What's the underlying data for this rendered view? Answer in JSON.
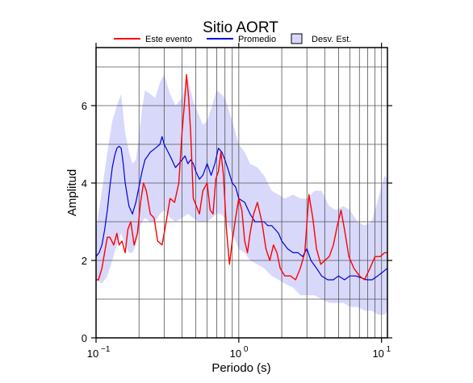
{
  "chart_data": {
    "type": "line",
    "title": "Sitio AORT",
    "xlabel": "Periodo (s)",
    "ylabel": "Amplitud",
    "x_scale": "log",
    "xlim": [
      0.1,
      11
    ],
    "ylim": [
      0,
      7.5
    ],
    "grid": true,
    "legend_position": "top",
    "x_tick_labels": [
      {
        "value": 0.1,
        "base": "10",
        "exp": "−1"
      },
      {
        "value": 1,
        "base": "10",
        "exp": "0"
      },
      {
        "value": 10,
        "base": "10",
        "exp": "1"
      }
    ],
    "y_ticks": [
      0,
      2,
      4,
      6
    ],
    "colors": {
      "este_evento": "#ff0000",
      "promedio": "#0000dd",
      "desv_est": "#d8d8fb"
    },
    "legend": [
      {
        "key": "este_evento",
        "label": "Este evento",
        "kind": "line"
      },
      {
        "key": "promedio",
        "label": "Promedio",
        "kind": "line"
      },
      {
        "key": "desv_est",
        "label": "Desv. Est.",
        "kind": "box"
      }
    ],
    "series": [
      {
        "name": "Este evento",
        "key": "este_evento",
        "x": [
          0.1,
          0.104,
          0.11,
          0.116,
          0.12,
          0.125,
          0.133,
          0.14,
          0.145,
          0.152,
          0.16,
          0.167,
          0.175,
          0.185,
          0.195,
          0.205,
          0.215,
          0.225,
          0.24,
          0.255,
          0.27,
          0.29,
          0.31,
          0.33,
          0.355,
          0.38,
          0.4,
          0.415,
          0.43,
          0.445,
          0.46,
          0.48,
          0.505,
          0.53,
          0.56,
          0.6,
          0.63,
          0.66,
          0.69,
          0.72,
          0.75,
          0.78,
          0.82,
          0.86,
          0.9,
          0.95,
          1.0,
          1.05,
          1.1,
          1.15,
          1.2,
          1.27,
          1.35,
          1.45,
          1.55,
          1.65,
          1.75,
          1.85,
          1.95,
          2.1,
          2.3,
          2.5,
          2.7,
          2.9,
          3.1,
          3.3,
          3.5,
          3.75,
          4.0,
          4.3,
          4.6,
          4.9,
          5.2,
          5.5,
          5.9,
          6.4,
          7.0,
          7.6,
          8.3,
          9.0,
          9.8,
          10.5,
          11.0
        ],
        "y": [
          1.5,
          1.5,
          1.8,
          2.3,
          2.6,
          2.6,
          2.4,
          2.7,
          2.4,
          2.5,
          2.2,
          2.8,
          3.0,
          2.4,
          2.7,
          3.5,
          4.0,
          3.8,
          3.2,
          3.1,
          2.5,
          2.4,
          3.0,
          3.6,
          3.5,
          4.0,
          5.3,
          6.0,
          6.8,
          6.2,
          5.3,
          3.6,
          3.4,
          3.2,
          3.8,
          4.0,
          3.3,
          3.2,
          4.1,
          4.3,
          4.8,
          4.2,
          2.8,
          1.9,
          2.5,
          3.1,
          3.6,
          3.3,
          2.5,
          2.2,
          2.7,
          3.2,
          3.5,
          3.0,
          2.3,
          2.0,
          2.4,
          2.2,
          1.8,
          1.6,
          1.6,
          1.5,
          1.8,
          2.2,
          3.7,
          3.1,
          2.3,
          1.9,
          2.0,
          2.1,
          2.4,
          2.9,
          3.3,
          2.8,
          2.1,
          1.8,
          1.6,
          1.5,
          1.8,
          2.1,
          2.1,
          2.2,
          2.2
        ]
      },
      {
        "name": "Promedio",
        "key": "promedio",
        "x": [
          0.1,
          0.105,
          0.11,
          0.115,
          0.12,
          0.125,
          0.13,
          0.135,
          0.14,
          0.145,
          0.15,
          0.155,
          0.16,
          0.17,
          0.18,
          0.19,
          0.2,
          0.21,
          0.22,
          0.23,
          0.24,
          0.25,
          0.26,
          0.27,
          0.28,
          0.29,
          0.3,
          0.32,
          0.34,
          0.36,
          0.38,
          0.4,
          0.42,
          0.44,
          0.46,
          0.48,
          0.5,
          0.53,
          0.56,
          0.6,
          0.64,
          0.68,
          0.72,
          0.76,
          0.8,
          0.85,
          0.9,
          0.95,
          1.0,
          1.1,
          1.2,
          1.3,
          1.4,
          1.5,
          1.6,
          1.7,
          1.8,
          1.9,
          2.0,
          2.2,
          2.4,
          2.6,
          2.8,
          3.0,
          3.2,
          3.5,
          3.8,
          4.2,
          4.6,
          5.0,
          5.5,
          6.0,
          6.6,
          7.2,
          7.9,
          8.6,
          9.4,
          10.2,
          11.0
        ],
        "y": [
          2.1,
          2.2,
          2.4,
          2.8,
          3.3,
          3.9,
          4.4,
          4.7,
          4.9,
          4.95,
          4.9,
          4.5,
          4.0,
          3.4,
          3.2,
          3.5,
          3.9,
          4.3,
          4.6,
          4.7,
          4.8,
          4.85,
          4.9,
          4.95,
          5.0,
          5.2,
          5.0,
          4.8,
          4.6,
          4.4,
          4.5,
          4.6,
          4.7,
          4.5,
          4.6,
          4.5,
          4.3,
          4.1,
          4.2,
          4.5,
          4.2,
          4.5,
          4.9,
          4.8,
          4.6,
          4.3,
          4.0,
          3.9,
          3.6,
          3.5,
          3.2,
          3.0,
          3.0,
          3.0,
          2.9,
          2.9,
          2.8,
          2.7,
          2.5,
          2.3,
          2.2,
          2.2,
          2.1,
          2.3,
          2.0,
          1.8,
          1.6,
          1.5,
          1.5,
          1.6,
          1.5,
          1.6,
          1.6,
          1.55,
          1.5,
          1.5,
          1.6,
          1.7,
          1.8
        ]
      },
      {
        "name": "Desv. Est.",
        "key": "desv_est",
        "x": [
          0.1,
          0.11,
          0.12,
          0.13,
          0.14,
          0.15,
          0.16,
          0.17,
          0.18,
          0.19,
          0.2,
          0.21,
          0.22,
          0.24,
          0.26,
          0.28,
          0.3,
          0.33,
          0.36,
          0.4,
          0.44,
          0.48,
          0.52,
          0.56,
          0.6,
          0.65,
          0.7,
          0.75,
          0.8,
          0.9,
          1.0,
          1.1,
          1.2,
          1.35,
          1.5,
          1.7,
          1.9,
          2.1,
          2.4,
          2.7,
          3.0,
          3.4,
          3.8,
          4.3,
          4.8,
          5.4,
          6.0,
          6.8,
          7.6,
          8.5,
          9.5,
          10.5,
          11.0
        ],
        "upper": [
          2.8,
          3.8,
          4.8,
          5.6,
          6.0,
          6.3,
          5.3,
          4.8,
          4.5,
          4.6,
          5.2,
          5.9,
          6.4,
          6.3,
          6.2,
          6.6,
          6.8,
          6.3,
          6.0,
          6.2,
          6.7,
          6.1,
          5.8,
          5.5,
          5.6,
          6.0,
          6.4,
          6.3,
          6.2,
          5.6,
          5.0,
          4.8,
          4.5,
          4.4,
          4.2,
          3.8,
          3.7,
          3.6,
          3.7,
          3.6,
          3.6,
          3.8,
          3.8,
          3.4,
          3.3,
          3.4,
          3.3,
          3.0,
          2.9,
          3.0,
          3.6,
          4.2,
          4.1
        ],
        "lower": [
          1.5,
          1.4,
          1.6,
          2.0,
          2.4,
          2.7,
          2.4,
          2.2,
          2.2,
          2.4,
          2.8,
          3.0,
          3.1,
          3.0,
          3.0,
          3.2,
          3.3,
          3.1,
          3.0,
          3.1,
          3.2,
          3.1,
          3.0,
          3.0,
          3.0,
          3.1,
          3.2,
          3.2,
          3.1,
          2.7,
          2.3,
          2.2,
          2.0,
          1.9,
          1.8,
          1.6,
          1.5,
          1.4,
          1.3,
          1.1,
          1.1,
          1.1,
          1.0,
          0.9,
          0.9,
          0.9,
          0.8,
          0.8,
          0.7,
          0.7,
          0.6,
          0.6,
          0.7
        ]
      }
    ]
  }
}
